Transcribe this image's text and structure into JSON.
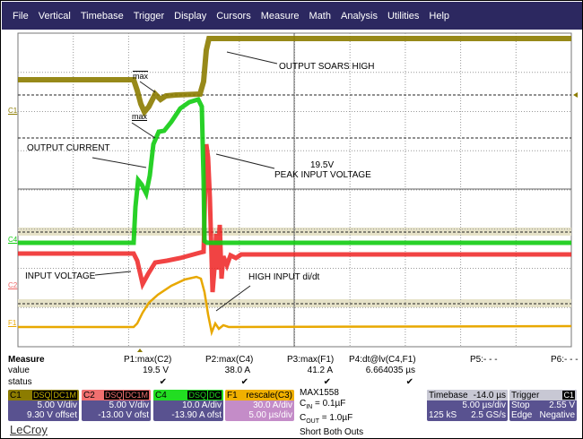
{
  "menu": [
    "File",
    "Vertical",
    "Timebase",
    "Trigger",
    "Display",
    "Cursors",
    "Measure",
    "Math",
    "Analysis",
    "Utilities",
    "Help"
  ],
  "annotations": {
    "max1": "max",
    "max2": "max",
    "output_current": "OUTPUT CURRENT",
    "output_soars": "OUTPUT SOARS HIGH",
    "peak_value": "19.5V",
    "peak_label": "PEAK INPUT VOLTAGE",
    "input_voltage": "INPUT VOLTAGE",
    "high_didt": "HIGH INPUT di/dt"
  },
  "channel_markers": {
    "c1": "C1",
    "c4": "C4",
    "c2": "C2",
    "f1": "F1"
  },
  "trace_colors": {
    "C1": "#8c7c00",
    "C2": "#ee2222",
    "C4": "#11cc11",
    "F1": "#e8a800"
  },
  "measure": {
    "title": "Measure",
    "row_value": "value",
    "row_status": "status",
    "params": [
      {
        "label": "P1:max(C2)",
        "value": "19.5 V",
        "status": "✔"
      },
      {
        "label": "P2:max(C4)",
        "value": "38.0 A",
        "status": "✔"
      },
      {
        "label": "P3:max(F1)",
        "value": "41.2 A",
        "status": "✔"
      },
      {
        "label": "P4:dt@lv(C4,F1)",
        "value": "6.664035 µs",
        "status": "✔"
      },
      {
        "label": "P5:- - -",
        "value": "",
        "status": ""
      },
      {
        "label": "P6:- - -",
        "value": "",
        "status": ""
      }
    ]
  },
  "channels": [
    {
      "name": "C1",
      "tags": [
        "DSQ",
        "DC1M"
      ],
      "line1": "5.00 V/div",
      "line2": "9.30 V offset",
      "color": "#8c7c00"
    },
    {
      "name": "C2",
      "tags": [
        "DSQ",
        "DC1M"
      ],
      "line1": "5.00 V/div",
      "line2": "-13.00 V ofst",
      "color": "#f07070"
    },
    {
      "name": "C4",
      "tags": [
        "DSQ",
        "DC"
      ],
      "line1": "10.0 A/div",
      "line2": "-13.90 A ofst",
      "color": "#22dd22"
    },
    {
      "name": "F1",
      "func": "rescale(C3)",
      "line1": "30.0 A/div",
      "line2": "5.00 µs/div",
      "color": "#f0b000"
    }
  ],
  "notes": {
    "part": "MAX1558",
    "cin_pre": "C",
    "cin_sub": "IN",
    "cin_val": " = 0.1µF",
    "cout_pre": "C",
    "cout_sub": "OUT",
    "cout_val": " = 1.0µF",
    "short": "Short Both Outs"
  },
  "timebase": {
    "title": "Timebase",
    "delay": "-14.0 µs",
    "div": "5.00 µs/div",
    "samples": "125 kS",
    "rate": "2.5 GS/s"
  },
  "trigger": {
    "title": "Trigger",
    "source": "C1",
    "mode": "Stop",
    "level": "2.55 V",
    "type": "Edge",
    "slope": "Negative"
  },
  "logo": "LeCroy"
}
